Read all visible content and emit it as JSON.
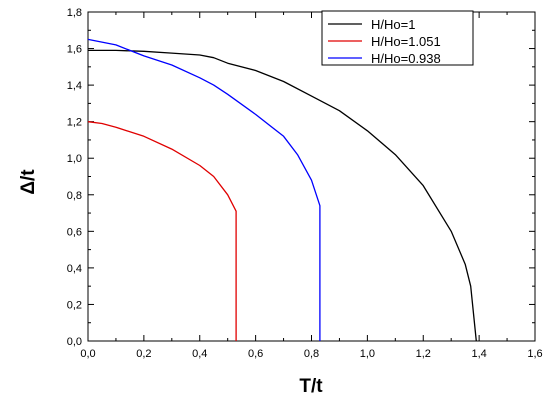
{
  "chart_data": {
    "type": "line",
    "xlabel": "T/t",
    "ylabel": "Δ/t",
    "xlim": [
      0,
      1.6
    ],
    "ylim": [
      0,
      1.8
    ],
    "x_ticks": [
      "0,0",
      "0,2",
      "0,4",
      "0,6",
      "0,8",
      "1,0",
      "1,2",
      "1,4",
      "1,6"
    ],
    "y_ticks": [
      "0,0",
      "0,2",
      "0,4",
      "0,6",
      "0,8",
      "1,0",
      "1,2",
      "1,4",
      "1,6",
      "1,8"
    ],
    "grid": false,
    "legend_position": "top-right",
    "series": [
      {
        "name": "H/Ho=1",
        "color": "#000000",
        "points": [
          [
            0,
            1.59
          ],
          [
            0.1,
            1.59
          ],
          [
            0.2,
            1.585
          ],
          [
            0.3,
            1.575
          ],
          [
            0.4,
            1.565
          ],
          [
            0.45,
            1.55
          ],
          [
            0.5,
            1.52
          ],
          [
            0.6,
            1.48
          ],
          [
            0.7,
            1.42
          ],
          [
            0.8,
            1.34
          ],
          [
            0.9,
            1.26
          ],
          [
            1.0,
            1.15
          ],
          [
            1.1,
            1.02
          ],
          [
            1.2,
            0.85
          ],
          [
            1.3,
            0.6
          ],
          [
            1.35,
            0.42
          ],
          [
            1.37,
            0.3
          ],
          [
            1.39,
            0.0
          ]
        ]
      },
      {
        "name": "H/Ho=1.051",
        "color": "#e00000",
        "points": [
          [
            0,
            1.2
          ],
          [
            0.05,
            1.19
          ],
          [
            0.1,
            1.17
          ],
          [
            0.2,
            1.12
          ],
          [
            0.3,
            1.05
          ],
          [
            0.4,
            0.96
          ],
          [
            0.45,
            0.9
          ],
          [
            0.5,
            0.8
          ],
          [
            0.53,
            0.71
          ],
          [
            0.53,
            0.0
          ]
        ]
      },
      {
        "name": "H/Ho=0.938",
        "color": "#0000ff",
        "points": [
          [
            0,
            1.65
          ],
          [
            0.1,
            1.62
          ],
          [
            0.2,
            1.56
          ],
          [
            0.3,
            1.51
          ],
          [
            0.4,
            1.44
          ],
          [
            0.45,
            1.4
          ],
          [
            0.5,
            1.35
          ],
          [
            0.6,
            1.24
          ],
          [
            0.7,
            1.12
          ],
          [
            0.75,
            1.02
          ],
          [
            0.8,
            0.88
          ],
          [
            0.83,
            0.74
          ],
          [
            0.83,
            0.0
          ]
        ]
      }
    ]
  }
}
